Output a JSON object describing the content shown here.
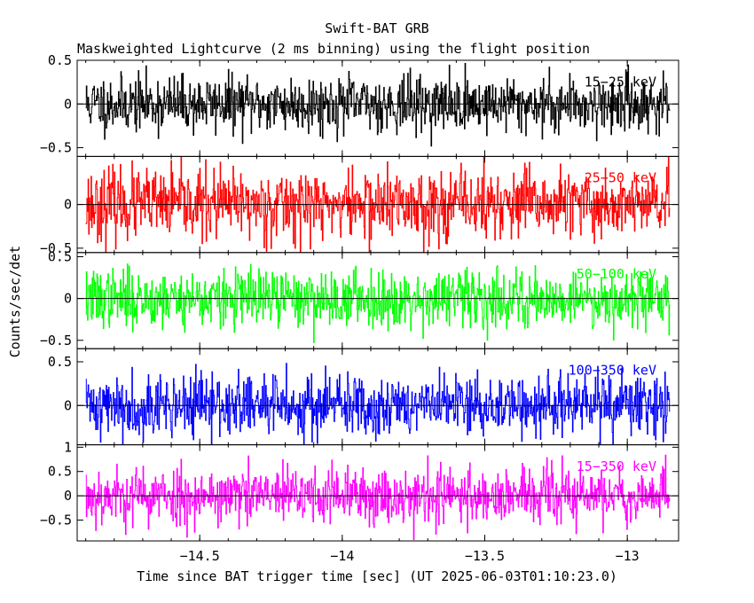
{
  "chart_data": {
    "type": "line",
    "title": "Swift-BAT GRB",
    "subtitle": "Maskweighted Lightcurve (2 ms binning) using the flight position",
    "xlabel": "Time since BAT trigger time [sec] (UT 2025-06-03T01:10:23.0)",
    "ylabel": "Counts/sec/det",
    "xlim": [
      -14.93,
      -12.82
    ],
    "xticks": [
      -14.5,
      -14,
      -13.5,
      -13
    ],
    "xtick_labels": [
      "−14.5",
      "−14",
      "−13.5",
      "−13"
    ],
    "data_x_range": [
      -14.9,
      -12.85
    ],
    "points_per_series": 1000,
    "panels": [
      {
        "name": "15-25 keV",
        "label": "15−25 keV",
        "color": "#000000",
        "ylim": [
          -0.6,
          0.5
        ],
        "yticks": [
          0.5,
          0,
          -0.5
        ],
        "ytick_labels": [
          "0.5",
          "0",
          "−0.5"
        ],
        "noise_sd": 0.16,
        "seed": 11
      },
      {
        "name": "25-50 keV",
        "label": "25−50 keV",
        "color": "#ff0000",
        "ylim": [
          -0.55,
          0.55
        ],
        "yticks": [
          0,
          -0.5
        ],
        "ytick_labels": [
          "0",
          "−0.5"
        ],
        "noise_sd": 0.2,
        "seed": 23
      },
      {
        "name": "50-100 keV",
        "label": "50−100 keV",
        "color": "#00ff00",
        "ylim": [
          -0.6,
          0.55
        ],
        "yticks": [
          0.5,
          0,
          -0.5
        ],
        "ytick_labels": [
          "0.5",
          "0",
          "−0.5"
        ],
        "noise_sd": 0.17,
        "seed": 37
      },
      {
        "name": "100-350 keV",
        "label": "100−350 keV",
        "color": "#0000ff",
        "ylim": [
          -0.45,
          0.65
        ],
        "yticks": [
          0.5,
          0
        ],
        "ytick_labels": [
          "0.5",
          "0"
        ],
        "noise_sd": 0.18,
        "seed": 41
      },
      {
        "name": "15-350 keV",
        "label": "15−350 keV",
        "color": "#ff00ff",
        "ylim": [
          -0.93,
          1.05
        ],
        "yticks": [
          1,
          0.5,
          0,
          -0.5
        ],
        "ytick_labels": [
          "1",
          "0.5",
          "0",
          "−0.5"
        ],
        "noise_sd": 0.3,
        "seed": 53
      }
    ]
  }
}
